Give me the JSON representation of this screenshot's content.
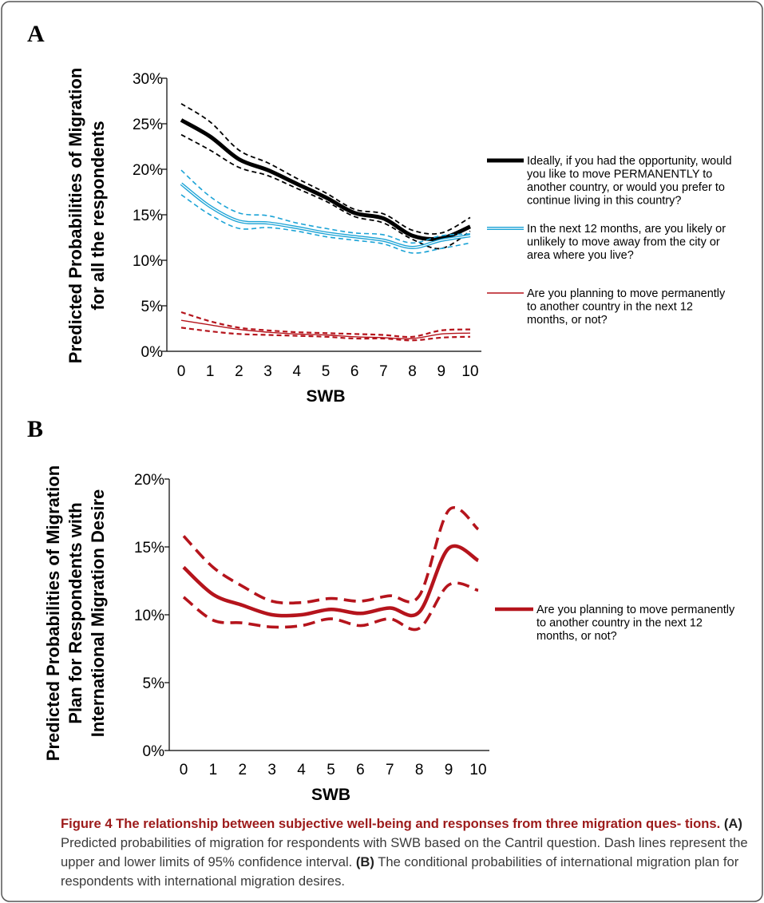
{
  "chart_data": [
    {
      "panel": "A",
      "type": "line",
      "ylabel_line1": "Predicted Probabilities of Migration",
      "ylabel_line2": "for all the respondents",
      "xlabel": "SWB",
      "x": [
        0,
        1,
        2,
        3,
        4,
        5,
        6,
        7,
        8,
        9,
        10
      ],
      "xticks": [
        "0",
        "1",
        "2",
        "3",
        "4",
        "5",
        "6",
        "7",
        "8",
        "9",
        "10"
      ],
      "yticks": [
        "0%",
        "5%",
        "10%",
        "15%",
        "20%",
        "25%",
        "30%"
      ],
      "ylim": [
        0,
        30
      ],
      "series": [
        {
          "name_lines": [
            "Ideally, if you had the opportunity, would",
            "you like to move PERMANENTLY to",
            "another country, or would you prefer to",
            "continue living in this country?"
          ],
          "color": "#000000",
          "style": "thick",
          "values": [
            25.4,
            23.6,
            21.1,
            19.9,
            18.4,
            16.9,
            15.2,
            14.6,
            12.7,
            12.4,
            13.7
          ],
          "upper": [
            27.2,
            25.2,
            22.1,
            20.7,
            19.0,
            17.4,
            15.6,
            15.1,
            13.3,
            13.0,
            14.7
          ],
          "lower": [
            23.8,
            22.1,
            20.2,
            19.3,
            17.9,
            16.5,
            14.8,
            14.1,
            12.3,
            11.3,
            13.2
          ]
        },
        {
          "name_lines": [
            "In the next 12 months, are you likely or",
            "unlikely to move away from the city or",
            "area where you live?"
          ],
          "color": "#1ba3d6",
          "style": "double",
          "values": [
            18.4,
            15.9,
            14.3,
            14.1,
            13.6,
            13.0,
            12.6,
            12.2,
            11.4,
            12.2,
            12.7
          ],
          "upper": [
            19.9,
            17.0,
            15.2,
            14.9,
            14.1,
            13.5,
            13.0,
            12.8,
            11.9,
            12.7,
            12.9
          ],
          "lower": [
            17.2,
            15.0,
            13.5,
            13.6,
            13.2,
            12.6,
            12.2,
            11.8,
            10.8,
            11.3,
            11.9
          ]
        },
        {
          "name_lines": [
            "Are you planning to move permanently",
            "to another country in the next 12",
            "months, or not?"
          ],
          "color": "#b5141c",
          "style": "thin",
          "values": [
            3.4,
            2.9,
            2.4,
            2.1,
            1.9,
            1.8,
            1.6,
            1.5,
            1.4,
            1.9,
            2.0
          ],
          "upper": [
            4.3,
            3.3,
            2.6,
            2.3,
            2.1,
            2.0,
            1.9,
            1.8,
            1.6,
            2.3,
            2.4
          ],
          "lower": [
            2.6,
            2.2,
            1.9,
            1.8,
            1.7,
            1.6,
            1.4,
            1.4,
            1.2,
            1.5,
            1.6
          ]
        }
      ]
    },
    {
      "panel": "B",
      "type": "line",
      "ylabel_line1": "Predicted Probabilities of Migration",
      "ylabel_line2": "Plan for Respondents with",
      "ylabel_line3": "International Migration Desire",
      "xlabel": "SWB",
      "x": [
        0,
        1,
        2,
        3,
        4,
        5,
        6,
        7,
        8,
        9,
        10
      ],
      "xticks": [
        "0",
        "1",
        "2",
        "3",
        "4",
        "5",
        "6",
        "7",
        "8",
        "9",
        "10"
      ],
      "yticks": [
        "0%",
        "5%",
        "10%",
        "15%",
        "20%"
      ],
      "ylim": [
        0,
        20
      ],
      "series": [
        {
          "name_lines": [
            "Are you planning to move permanently",
            "to another country in the next 12",
            "months, or not?"
          ],
          "color": "#b5141c",
          "style": "thickred",
          "values": [
            13.5,
            11.5,
            10.7,
            10.0,
            10.0,
            10.4,
            10.1,
            10.5,
            10.2,
            14.9,
            14.0
          ],
          "upper": [
            15.8,
            13.5,
            12.1,
            11.0,
            10.9,
            11.2,
            11.0,
            11.4,
            11.4,
            17.7,
            16.3
          ],
          "lower": [
            11.3,
            9.6,
            9.4,
            9.1,
            9.2,
            9.7,
            9.2,
            9.7,
            9.0,
            12.2,
            11.8
          ]
        }
      ]
    }
  ],
  "panel_labels": {
    "a": "A",
    "b": "B"
  },
  "caption": {
    "title": "Figure 4 The relationship between subjective well-being and responses from three migration ques-",
    "title_cont": "tions.",
    "a_tag": "(A)",
    "a_text": " Predicted probabilities of migration for respondents with SWB based on the Cantril question. Dash lines represent the upper and lower limits of 95% confidence interval. ",
    "b_tag": "(B)",
    "b_text": " The conditional probabilities of international migration plan for respondents with international migration desires."
  }
}
